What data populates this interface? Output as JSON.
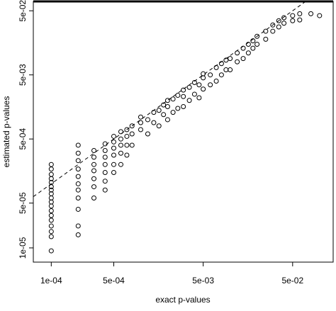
{
  "chart_data": {
    "type": "scatter",
    "xlabel": "exact p-values",
    "ylabel": "estimated p-values",
    "xscale": "log",
    "yscale": "log",
    "color": "#000000",
    "xlim": [
      6.3e-05,
      0.142
    ],
    "ylim": [
      6e-06,
      0.07
    ],
    "xticks": [
      {
        "value": 0.0001,
        "label": "1e-04"
      },
      {
        "value": 0.0005,
        "label": "5e-04"
      },
      {
        "value": 0.005,
        "label": "5e-03"
      },
      {
        "value": 0.05,
        "label": "5e-02"
      }
    ],
    "yticks": [
      {
        "value": 1e-05,
        "label": "1e-05"
      },
      {
        "value": 5e-05,
        "label": "5e-05"
      },
      {
        "value": 0.0005,
        "label": "5e-04"
      },
      {
        "value": 0.005,
        "label": "5e-03"
      },
      {
        "value": 0.05,
        "label": "5e-02"
      }
    ],
    "x": [
      0.0001,
      0.0001,
      0.0001,
      0.0001,
      0.0001,
      0.0001,
      0.0001,
      0.0001,
      0.0001,
      0.0001,
      0.0001,
      0.0001,
      0.0001,
      0.0001,
      0.0001,
      0.0001,
      0.0001,
      0.0001,
      0.0002,
      0.0002,
      0.0002,
      0.0002,
      0.0002,
      0.0002,
      0.0002,
      0.0002,
      0.0002,
      0.0002,
      0.0002,
      0.0003,
      0.0003,
      0.0003,
      0.0003,
      0.0003,
      0.0003,
      0.0003,
      0.0004,
      0.0004,
      0.0004,
      0.0004,
      0.0004,
      0.0004,
      0.0004,
      0.0005,
      0.0005,
      0.0005,
      0.0005,
      0.0005,
      0.0005,
      0.0006,
      0.0006,
      0.0006,
      0.0006,
      0.0006,
      0.0007,
      0.0007,
      0.0007,
      0.0007,
      0.0008,
      0.0008,
      0.0008,
      0.001,
      0.001,
      0.001,
      0.0012,
      0.0012,
      0.0014,
      0.0014,
      0.0016,
      0.0016,
      0.0018,
      0.0018,
      0.002,
      0.002,
      0.002,
      0.0023,
      0.0023,
      0.0026,
      0.0026,
      0.003,
      0.003,
      0.003,
      0.0035,
      0.0035,
      0.004,
      0.004,
      0.0045,
      0.0045,
      0.005,
      0.005,
      0.005,
      0.006,
      0.006,
      0.007,
      0.007,
      0.008,
      0.008,
      0.009,
      0.009,
      0.01,
      0.01,
      0.012,
      0.012,
      0.014,
      0.014,
      0.016,
      0.016,
      0.018,
      0.018,
      0.02,
      0.02,
      0.025,
      0.025,
      0.03,
      0.03,
      0.035,
      0.035,
      0.04,
      0.04,
      0.05,
      0.05,
      0.06,
      0.06,
      0.08,
      0.1
    ],
    "values": [
      9e-06,
      1.5e-05,
      1.8e-05,
      2.2e-05,
      2.7e-05,
      3.2e-05,
      3.8e-05,
      4.5e-05,
      5.2e-05,
      6e-05,
      7e-05,
      8e-05,
      9e-05,
      0.000105,
      0.00012,
      0.00014,
      0.00017,
      0.0002,
      1.6e-05,
      2.2e-05,
      4e-05,
      6e-05,
      8e-05,
      0.0001,
      0.00013,
      0.00017,
      0.00023,
      0.0003,
      0.0004,
      6e-05,
      9e-05,
      0.00012,
      0.00016,
      0.0002,
      0.00026,
      0.00033,
      8e-05,
      0.00011,
      0.00015,
      0.0002,
      0.00026,
      0.00033,
      0.00042,
      0.00015,
      0.0002,
      0.00028,
      0.00036,
      0.00045,
      0.00055,
      0.0002,
      0.0003,
      0.0004,
      0.0005,
      0.00065,
      0.00028,
      0.0004,
      0.00055,
      0.0007,
      0.0004,
      0.0006,
      0.0008,
      0.0007,
      0.0009,
      0.0011,
      0.0006,
      0.001,
      0.0009,
      0.0013,
      0.0008,
      0.0014,
      0.0012,
      0.0017,
      0.001,
      0.0016,
      0.002,
      0.0013,
      0.0021,
      0.0015,
      0.0024,
      0.0016,
      0.0023,
      0.0029,
      0.002,
      0.0032,
      0.0025,
      0.0038,
      0.0022,
      0.0035,
      0.003,
      0.0045,
      0.0052,
      0.0035,
      0.005,
      0.004,
      0.0065,
      0.005,
      0.0075,
      0.006,
      0.0085,
      0.006,
      0.009,
      0.008,
      0.011,
      0.009,
      0.013,
      0.011,
      0.015,
      0.013,
      0.017,
      0.015,
      0.02,
      0.018,
      0.024,
      0.024,
      0.03,
      0.028,
      0.035,
      0.032,
      0.039,
      0.035,
      0.042,
      0.036,
      0.045,
      0.045,
      0.042
    ]
  }
}
